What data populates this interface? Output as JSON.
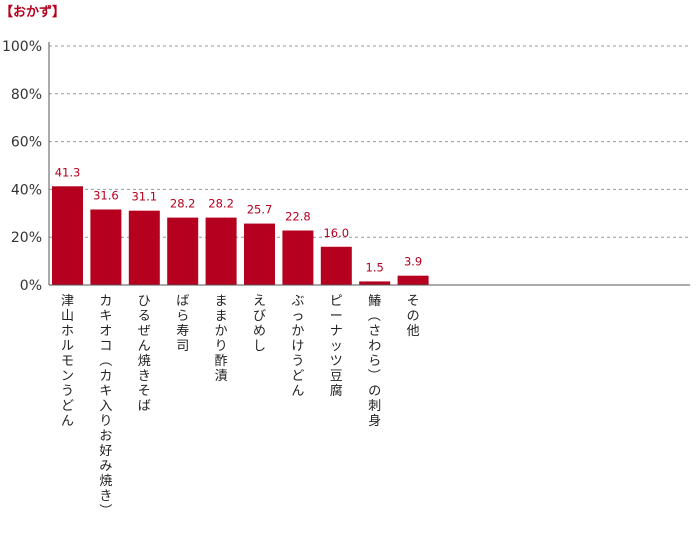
{
  "chart_data": {
    "type": "bar",
    "title": "【おかず】",
    "categories": [
      "津山ホルモンうどん",
      "カキオコ（カキ入りお好み焼き）",
      "ひるぜん焼きそば",
      "ばら寿司",
      "ままかり酢漬",
      "えびめし",
      "ぶっかけうどん",
      "ピーナッツ豆腐",
      "鰆（さわら）の刺身",
      "その他"
    ],
    "values": [
      41.3,
      31.6,
      31.1,
      28.2,
      28.2,
      25.7,
      22.8,
      16.0,
      1.5,
      3.9
    ],
    "value_labels": [
      "41.3",
      "31.6",
      "31.1",
      "28.2",
      "28.2",
      "25.7",
      "22.8",
      "16.0",
      "1.5",
      "3.9"
    ],
    "ylim": [
      0,
      100
    ],
    "yticks": [
      "0%",
      "20%",
      "40%",
      "60%",
      "80%",
      "100%"
    ],
    "ytick_values": [
      0,
      20,
      40,
      60,
      80,
      100
    ],
    "grid": true,
    "colors": {
      "bar": "#b5001f",
      "label": "#b5001f",
      "title": "#b5001f",
      "axis": "#555555",
      "grid": "#999999"
    }
  }
}
